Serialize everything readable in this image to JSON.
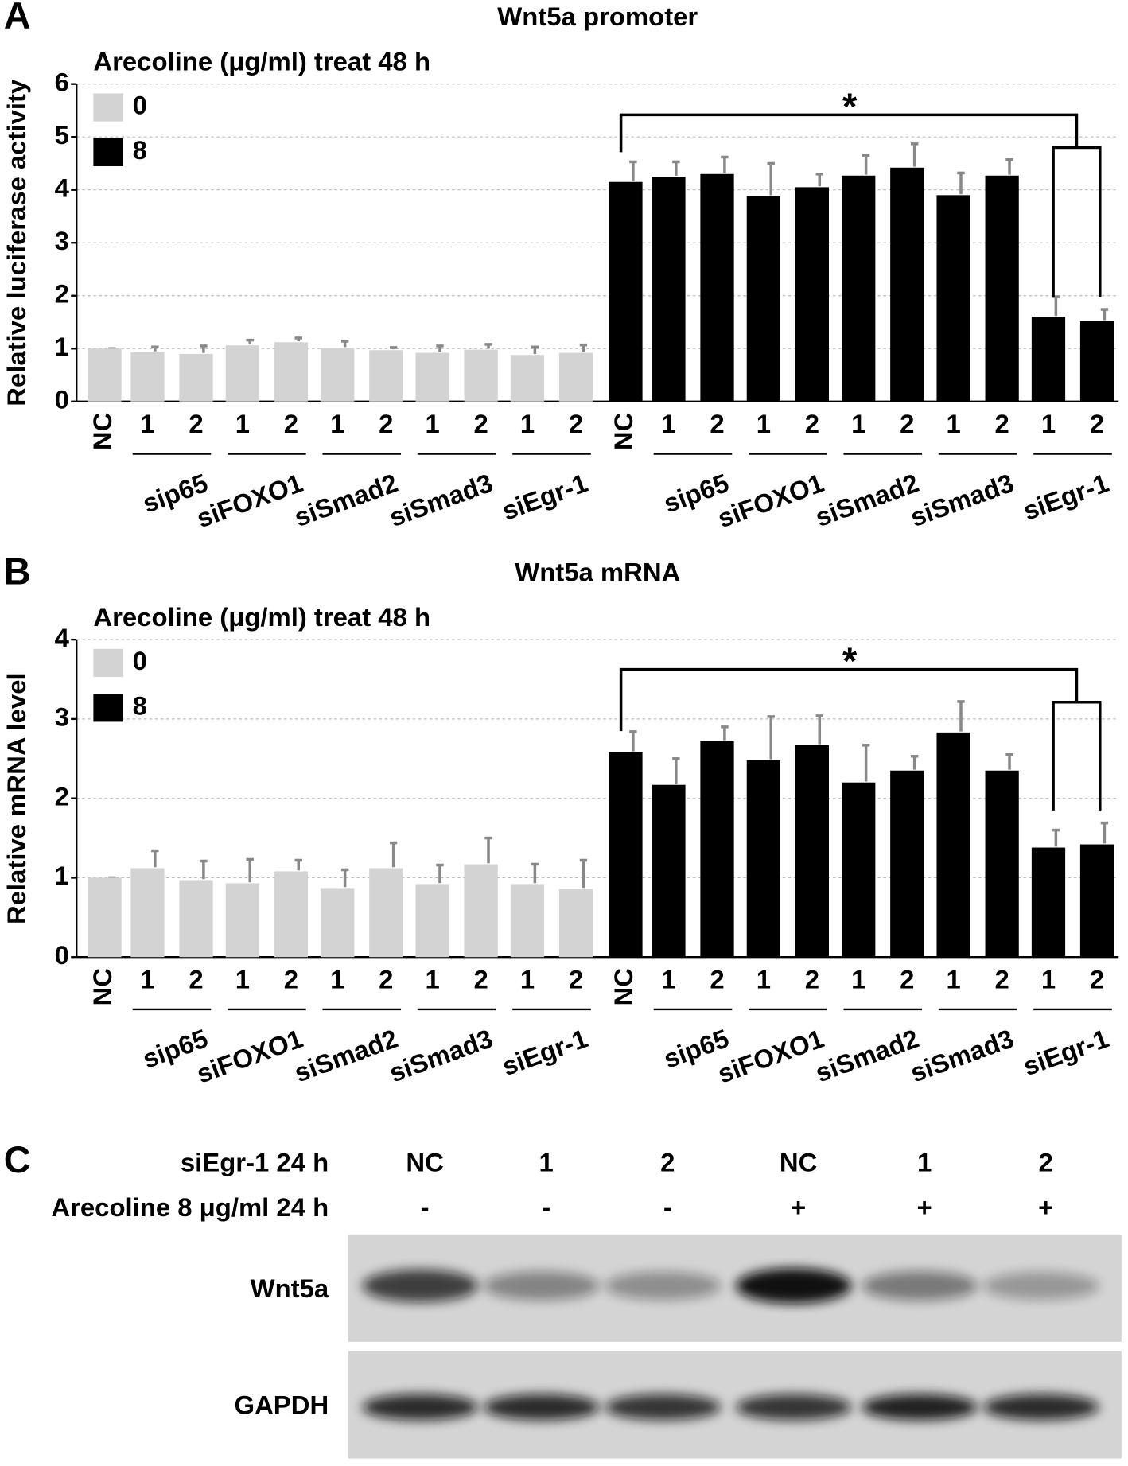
{
  "chart_data": [
    {
      "type": "bar",
      "panel_label": "A",
      "title": "Wnt5a promoter",
      "legend_title": "Arecoline (μg/ml) treat 48 h",
      "ylabel": "Relative luciferase activity",
      "categories": [
        "NC",
        "1",
        "2",
        "1",
        "2",
        "1",
        "2",
        "1",
        "2",
        "1",
        "2",
        "NC",
        "1",
        "2",
        "1",
        "2",
        "1",
        "2",
        "1",
        "2",
        "1",
        "2"
      ],
      "groups": [
        "sip65",
        "siFOXO1",
        "siSmad2",
        "siSmad3",
        "siEgr-1",
        "sip65",
        "siFOXO1",
        "siSmad2",
        "siSmad3",
        "siEgr-1"
      ],
      "series": [
        {
          "name": "0",
          "color": "#d3d3d3",
          "values": [
            1.0,
            0.93,
            0.9,
            1.06,
            1.12,
            1.01,
            0.97,
            0.92,
            0.98,
            0.88,
            0.92,
            null,
            null,
            null,
            null,
            null,
            null,
            null,
            null,
            null,
            null,
            null
          ],
          "errors": [
            0,
            0.1,
            0.15,
            0.1,
            0.08,
            0.13,
            0.05,
            0.13,
            0.1,
            0.15,
            0.15,
            null,
            null,
            null,
            null,
            null,
            null,
            null,
            null,
            null,
            null,
            null
          ]
        },
        {
          "name": "8",
          "color": "#000000",
          "values": [
            null,
            null,
            null,
            null,
            null,
            null,
            null,
            null,
            null,
            null,
            null,
            4.15,
            4.25,
            4.3,
            3.88,
            4.05,
            4.27,
            4.42,
            3.9,
            4.27,
            1.6,
            1.52
          ],
          "errors": [
            null,
            null,
            null,
            null,
            null,
            null,
            null,
            null,
            null,
            null,
            null,
            0.38,
            0.28,
            0.32,
            0.62,
            0.25,
            0.38,
            0.45,
            0.42,
            0.3,
            0.38,
            0.22
          ]
        }
      ],
      "ylim": [
        0,
        6
      ],
      "yticks": [
        0,
        1,
        2,
        3,
        4,
        5,
        6
      ],
      "grid": true,
      "annotation": "*"
    },
    {
      "type": "bar",
      "panel_label": "B",
      "title": "Wnt5a mRNA",
      "legend_title": "Arecoline (μg/ml) treat 48 h",
      "ylabel": "Relative mRNA level",
      "categories": [
        "NC",
        "1",
        "2",
        "1",
        "2",
        "1",
        "2",
        "1",
        "2",
        "1",
        "2",
        "NC",
        "1",
        "2",
        "1",
        "2",
        "1",
        "2",
        "1",
        "2",
        "1",
        "2"
      ],
      "groups": [
        "sip65",
        "siFOXO1",
        "siSmad2",
        "siSmad3",
        "siEgr-1",
        "sip65",
        "siFOXO1",
        "siSmad2",
        "siSmad3",
        "siEgr-1"
      ],
      "series": [
        {
          "name": "0",
          "color": "#d3d3d3",
          "values": [
            1.0,
            1.12,
            0.97,
            0.93,
            1.08,
            0.87,
            1.12,
            0.92,
            1.17,
            0.92,
            0.86,
            null,
            null,
            null,
            null,
            null,
            null,
            null,
            null,
            null,
            null,
            null
          ],
          "errors": [
            0,
            0.22,
            0.24,
            0.3,
            0.14,
            0.23,
            0.32,
            0.24,
            0.33,
            0.25,
            0.36,
            null,
            null,
            null,
            null,
            null,
            null,
            null,
            null,
            null,
            null,
            null
          ]
        },
        {
          "name": "8",
          "color": "#000000",
          "values": [
            null,
            null,
            null,
            null,
            null,
            null,
            null,
            null,
            null,
            null,
            null,
            2.58,
            2.17,
            2.72,
            2.48,
            2.67,
            2.2,
            2.35,
            2.83,
            2.35,
            1.38,
            1.42
          ],
          "errors": [
            null,
            null,
            null,
            null,
            null,
            null,
            null,
            null,
            null,
            null,
            null,
            0.26,
            0.33,
            0.18,
            0.55,
            0.37,
            0.47,
            0.18,
            0.39,
            0.2,
            0.22,
            0.27
          ]
        }
      ],
      "ylim": [
        0,
        4
      ],
      "yticks": [
        0,
        1,
        2,
        3,
        4
      ],
      "grid": true,
      "annotation": "*"
    }
  ],
  "blot": {
    "panel_label": "C",
    "rows": [
      {
        "label": "siEgr-1 24 h",
        "lanes": [
          "NC",
          "1",
          "2",
          "NC",
          "1",
          "2"
        ]
      },
      {
        "label": "Arecoline 8 μg/ml 24 h",
        "lanes": [
          "-",
          "-",
          "-",
          "+",
          "+",
          "+"
        ]
      }
    ],
    "bands": [
      "Wnt5a",
      "GAPDH"
    ]
  }
}
